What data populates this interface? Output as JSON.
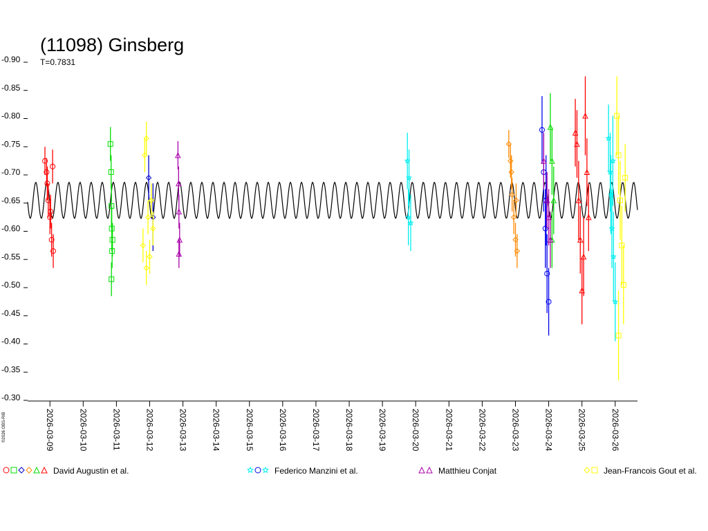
{
  "chart_data": {
    "type": "scatter",
    "title": "(11098) Ginsberg",
    "subtitle": "T=0.7831",
    "credit": "©2026 OBS-RIB",
    "y_inverted": true,
    "ylim": [
      -0.9,
      -0.3
    ],
    "yticks": [
      {
        "value": -0.9,
        "label": "-0.90"
      },
      {
        "value": -0.85,
        "label": "-0.85"
      },
      {
        "value": -0.8,
        "label": "-0.80"
      },
      {
        "value": -0.75,
        "label": "-0.75"
      },
      {
        "value": -0.7,
        "label": "-0.70"
      },
      {
        "value": -0.65,
        "label": "-0.65"
      },
      {
        "value": -0.6,
        "label": "-0.60"
      },
      {
        "value": -0.55,
        "label": "-0.55"
      },
      {
        "value": -0.5,
        "label": "-0.50"
      },
      {
        "value": -0.45,
        "label": "-0.45"
      },
      {
        "value": -0.4,
        "label": "-0.40"
      },
      {
        "value": -0.35,
        "label": "-0.35"
      },
      {
        "value": -0.3,
        "label": "-0.30"
      }
    ],
    "xlim": [
      8.33,
      26.67
    ],
    "xticks": [
      {
        "value": 9,
        "label": "2026-03-09"
      },
      {
        "value": 10,
        "label": "2026-03-10"
      },
      {
        "value": 11,
        "label": "2026-03-11"
      },
      {
        "value": 12,
        "label": "2026-03-12"
      },
      {
        "value": 13,
        "label": "2026-03-13"
      },
      {
        "value": 14,
        "label": "2026-03-14"
      },
      {
        "value": 15,
        "label": "2026-03-15"
      },
      {
        "value": 16,
        "label": "2026-03-16"
      },
      {
        "value": 17,
        "label": "2026-03-17"
      },
      {
        "value": 18,
        "label": "2026-03-18"
      },
      {
        "value": 19,
        "label": "2026-03-19"
      },
      {
        "value": 20,
        "label": "2026-03-20"
      },
      {
        "value": 21,
        "label": "2026-03-21"
      },
      {
        "value": 22,
        "label": "2026-03-22"
      },
      {
        "value": 23,
        "label": "2026-03-23"
      },
      {
        "value": 24,
        "label": "2026-03-24"
      },
      {
        "value": 25,
        "label": "2026-03-25"
      },
      {
        "value": 26,
        "label": "2026-03-26"
      }
    ],
    "fit": {
      "mean": -0.65,
      "amplitude": 0.032,
      "period": 0.333,
      "color": "#000000"
    },
    "observers": [
      {
        "name": "David Augustin et al.",
        "series": [
          {
            "color": "#ff0000",
            "marker": "circle",
            "x": [
              8.85,
              8.9,
              8.92,
              8.95,
              9.0,
              9.02,
              9.05,
              9.08,
              9.1
            ],
            "values": [
              -0.72,
              -0.7,
              -0.68,
              -0.65,
              -0.62,
              -0.63,
              -0.58,
              -0.71,
              -0.56
            ],
            "errors": [
              0.025,
              0.025,
              0.03,
              0.03,
              0.03,
              0.03,
              0.03,
              0.03,
              0.03
            ]
          },
          {
            "color": "#00dd00",
            "marker": "square",
            "x": [
              10.82,
              10.84,
              10.85,
              10.85,
              10.86,
              10.87,
              10.88
            ],
            "values": [
              -0.75,
              -0.7,
              -0.64,
              -0.51,
              -0.6,
              -0.56,
              -0.58
            ],
            "errors": [
              0.03,
              0.03,
              0.04,
              0.03,
              0.04,
              0.03,
              0.03
            ]
          },
          {
            "color": "#0000cc",
            "marker": "diamond",
            "x": [
              11.97,
              12.1
            ],
            "values": [
              -0.69,
              -0.62
            ],
            "errors": [
              0.04,
              0.06
            ]
          },
          {
            "color": "#ff8800",
            "marker": "diamond",
            "x": [
              22.8,
              22.85,
              22.88,
              22.9,
              22.95,
              23.0,
              23.02,
              23.05
            ],
            "values": [
              -0.75,
              -0.72,
              -0.7,
              -0.66,
              -0.62,
              -0.58,
              -0.65,
              -0.56
            ],
            "errors": [
              0.025,
              0.03,
              0.03,
              0.03,
              0.03,
              0.03,
              0.03,
              0.03
            ]
          },
          {
            "color": "#00dd00",
            "marker": "triangle",
            "x": [
              24.05,
              24.1,
              24.1,
              24.15
            ],
            "values": [
              -0.78,
              -0.72,
              -0.58,
              -0.65
            ],
            "errors": [
              0.06,
              0.06,
              0.05,
              0.06
            ]
          },
          {
            "color": "#ff0000",
            "marker": "triangle",
            "x": [
              24.8,
              24.85,
              24.9,
              24.95,
              25.0,
              25.05,
              25.1,
              25.15,
              25.2
            ],
            "values": [
              -0.77,
              -0.75,
              -0.65,
              -0.58,
              -0.49,
              -0.55,
              -0.8,
              -0.7,
              -0.62
            ],
            "errors": [
              0.06,
              0.06,
              0.07,
              0.06,
              0.06,
              0.07,
              0.07,
              0.06,
              0.06
            ]
          }
        ]
      },
      {
        "name": "Federico Manzini et al.",
        "series": [
          {
            "color": "#00eeee",
            "marker": "star",
            "x": [
              19.75,
              19.78,
              19.8,
              19.85
            ],
            "values": [
              -0.72,
              -0.62,
              -0.69,
              -0.61
            ],
            "errors": [
              0.05,
              0.05,
              0.05,
              0.05
            ]
          },
          {
            "color": "#0000ee",
            "marker": "circle",
            "x": [
              23.8,
              23.85,
              23.9,
              23.92,
              23.95,
              24.0
            ],
            "values": [
              -0.775,
              -0.7,
              -0.6,
              -0.65,
              -0.52,
              -0.47
            ],
            "errors": [
              0.06,
              0.07,
              0.07,
              0.08,
              0.07,
              0.06
            ]
          },
          {
            "color": "#00eeee",
            "marker": "star",
            "x": [
              25.8,
              25.85,
              25.87,
              25.9,
              25.93,
              25.95,
              26.0
            ],
            "values": [
              -0.76,
              -0.7,
              -0.66,
              -0.6,
              -0.72,
              -0.55,
              -0.47
            ],
            "errors": [
              0.06,
              0.07,
              0.07,
              0.07,
              0.08,
              0.08,
              0.07
            ]
          }
        ]
      },
      {
        "name": "Matthieu Conjat",
        "series": [
          {
            "color": "#aa00aa",
            "marker": "triangle",
            "x": [
              12.85,
              12.87,
              12.88,
              12.88,
              12.9
            ],
            "values": [
              -0.73,
              -0.68,
              -0.63,
              -0.555,
              -0.58
            ],
            "errors": [
              0.025,
              0.03,
              0.03,
              0.025,
              0.03
            ]
          },
          {
            "color": "#aa00aa",
            "marker": "triangle",
            "x": [
              23.85,
              23.95,
              24.0,
              24.05
            ],
            "values": [
              -0.72,
              -0.65,
              -0.62,
              -0.58
            ],
            "errors": [
              0.05,
              0.05,
              0.05,
              0.05
            ]
          }
        ]
      },
      {
        "name": "Jean-Francois Gout et al.",
        "series": [
          {
            "color": "#ffff00",
            "marker": "diamond",
            "x": [
              11.8,
              11.85,
              11.9,
              11.9,
              11.95,
              12.0,
              12.05,
              12.1
            ],
            "values": [
              -0.57,
              -0.73,
              -0.76,
              -0.53,
              -0.62,
              -0.55,
              -0.65,
              -0.6
            ],
            "errors": [
              0.03,
              0.03,
              0.03,
              0.03,
              0.03,
              0.03,
              0.03,
              0.03
            ]
          },
          {
            "color": "#ffff00",
            "marker": "square",
            "x": [
              26.05,
              26.1,
              26.1,
              26.15,
              26.2,
              26.25,
              26.3
            ],
            "values": [
              -0.8,
              -0.73,
              -0.41,
              -0.65,
              -0.57,
              -0.5,
              -0.69
            ],
            "errors": [
              0.07,
              0.07,
              0.08,
              0.07,
              0.07,
              0.07,
              0.06
            ]
          }
        ]
      }
    ]
  }
}
